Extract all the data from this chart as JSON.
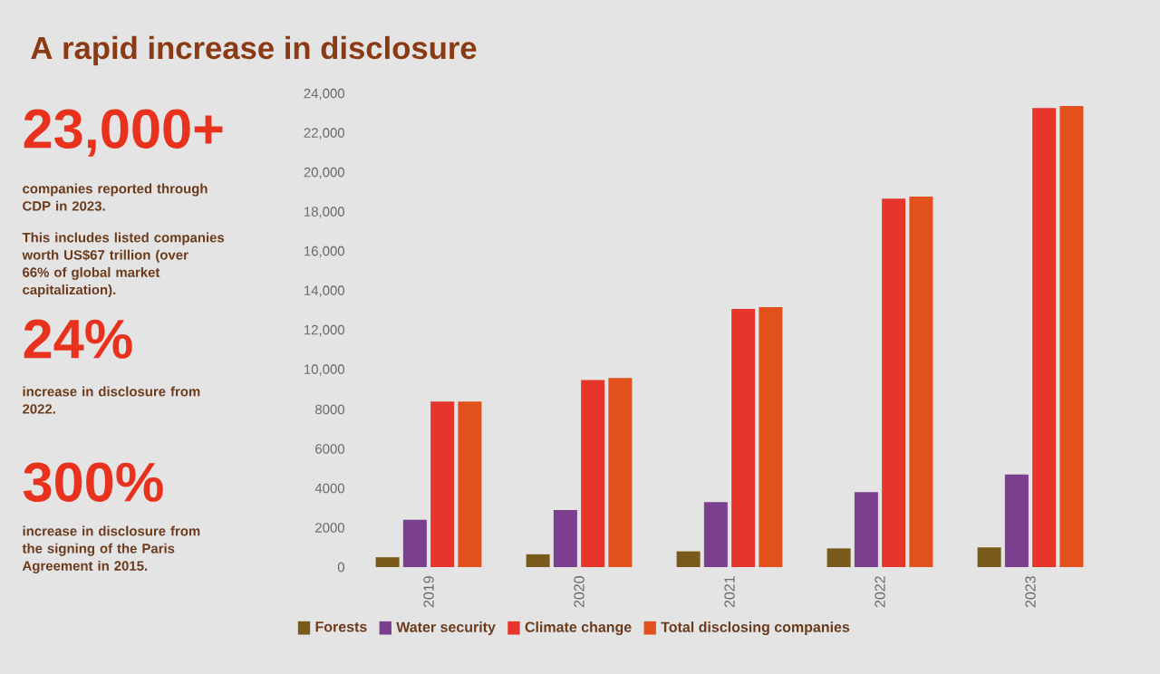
{
  "chart_data": {
    "type": "bar",
    "title": "A rapid increase in disclosure",
    "annotations": [
      "23,000+",
      "companies reported through CDP in 2023.",
      "This includes listed companies worth US$67 trillion (over 66% of global market capitalization).",
      "24%",
      "increase in disclosure from 2022.",
      "300%",
      "increase in disclosure from the signing of the Paris Agreement in 2015."
    ],
    "categories": [
      "2019",
      "2020",
      "2021",
      "2022",
      "2023"
    ],
    "series": [
      {
        "name": "Forests",
        "color": "#7a5a1a",
        "values": [
          500,
          650,
          800,
          950,
          1000
        ]
      },
      {
        "name": "Water security",
        "color": "#7b3f8f",
        "values": [
          2400,
          2900,
          3300,
          3800,
          4700
        ]
      },
      {
        "name": "Climate change",
        "color": "#e8352b",
        "values": [
          8400,
          9500,
          13100,
          18700,
          23300
        ]
      },
      {
        "name": "Total disclosing companies",
        "color": "#e2501c",
        "values": [
          8400,
          9600,
          13200,
          18800,
          23400
        ]
      }
    ],
    "ylim": [
      0,
      24000
    ],
    "yticks": [
      0,
      2000,
      4000,
      6000,
      8000,
      {
        "value": 10000,
        "label": "10,000"
      },
      {
        "value": 12000,
        "label": "12,000"
      },
      {
        "value": 14000,
        "label": "14,000"
      },
      {
        "value": 16000,
        "label": "16,000"
      },
      {
        "value": 18000,
        "label": "18,000"
      },
      {
        "value": 20000,
        "label": "20,000"
      },
      {
        "value": 22000,
        "label": "22,000"
      },
      {
        "value": 24000,
        "label": "24,000"
      }
    ],
    "legend": "bottom"
  }
}
